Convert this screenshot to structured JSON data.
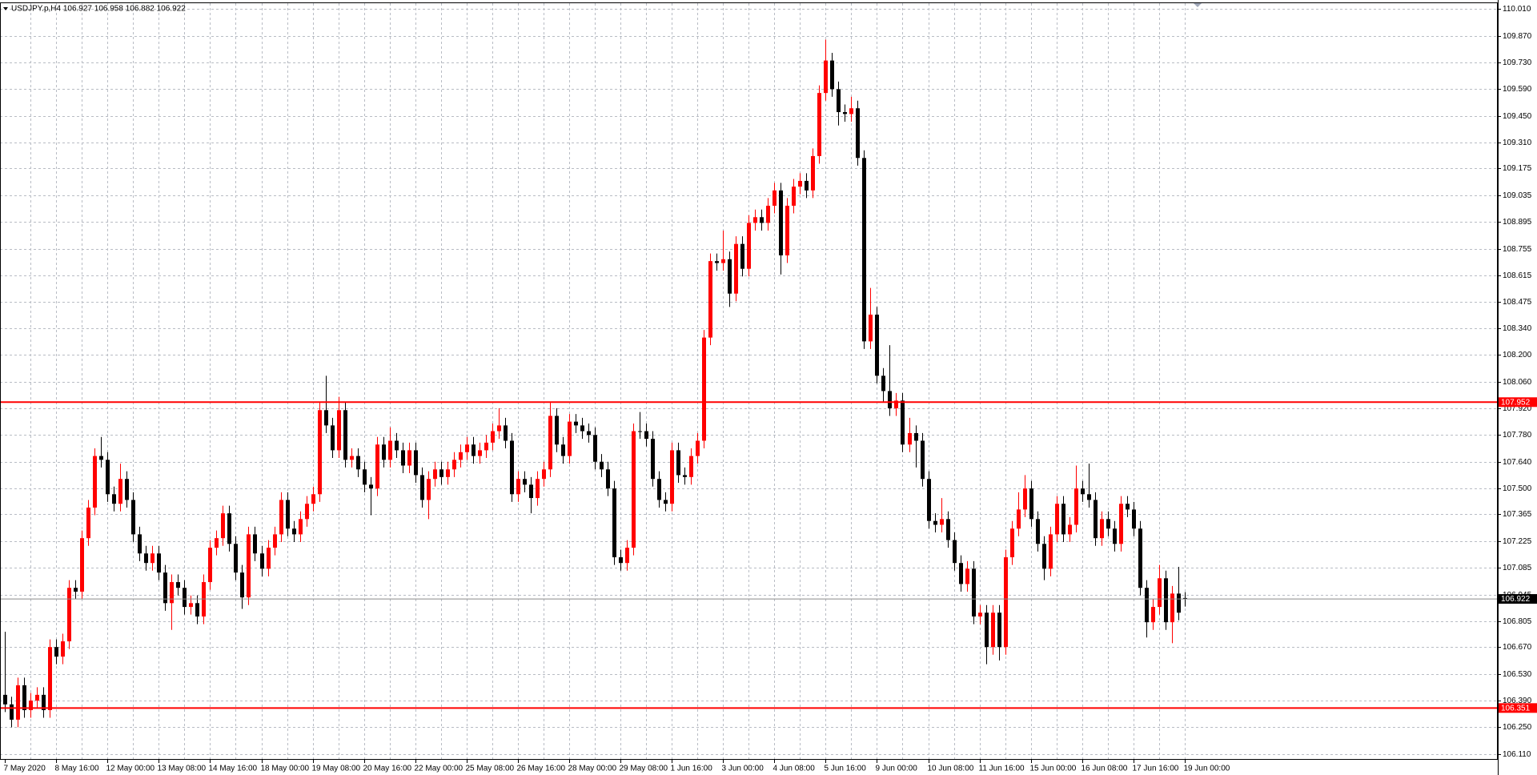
{
  "chart_data": {
    "type": "candlestick",
    "title": "USDJPY.p,H4  106.927 106.958 106.882 106.922",
    "up_color": "#ff0000",
    "down_color": "#000000",
    "grid": true,
    "ylim": [
      106.08,
      110.04
    ],
    "yticks": [
      {
        "value": 110.01,
        "label": "110.010"
      },
      {
        "value": 109.87,
        "label": "109.870"
      },
      {
        "value": 109.73,
        "label": "109.730"
      },
      {
        "value": 109.59,
        "label": "109.590"
      },
      {
        "value": 109.45,
        "label": "109.450"
      },
      {
        "value": 109.31,
        "label": "109.310"
      },
      {
        "value": 109.175,
        "label": "109.175"
      },
      {
        "value": 109.035,
        "label": "109.035"
      },
      {
        "value": 108.895,
        "label": "108.895"
      },
      {
        "value": 108.755,
        "label": "108.755"
      },
      {
        "value": 108.615,
        "label": "108.615"
      },
      {
        "value": 108.475,
        "label": "108.475"
      },
      {
        "value": 108.34,
        "label": "108.340"
      },
      {
        "value": 108.2,
        "label": "108.200"
      },
      {
        "value": 108.06,
        "label": "108.060"
      },
      {
        "value": 107.92,
        "label": "107.920"
      },
      {
        "value": 107.78,
        "label": "107.780"
      },
      {
        "value": 107.64,
        "label": "107.640"
      },
      {
        "value": 107.5,
        "label": "107.500"
      },
      {
        "value": 107.365,
        "label": "107.365"
      },
      {
        "value": 107.225,
        "label": "107.225"
      },
      {
        "value": 107.085,
        "label": "107.085"
      },
      {
        "value": 106.945,
        "label": "106.945"
      },
      {
        "value": 106.805,
        "label": "106.805"
      },
      {
        "value": 106.67,
        "label": "106.670"
      },
      {
        "value": 106.53,
        "label": "106.530"
      },
      {
        "value": 106.39,
        "label": "106.390"
      },
      {
        "value": 106.25,
        "label": "106.250"
      },
      {
        "value": 106.11,
        "label": "106.110"
      }
    ],
    "hlines": [
      {
        "value": 107.952,
        "color": "#ff0000"
      },
      {
        "value": 106.351,
        "color": "#ff0000"
      },
      {
        "value": 106.922,
        "color": "#000000"
      }
    ],
    "categories": [
      "7 May 2020",
      null,
      null,
      null,
      null,
      null,
      null,
      null,
      "8 May 16:00",
      null,
      null,
      null,
      null,
      null,
      null,
      null,
      "12 May 00:00",
      null,
      null,
      null,
      null,
      null,
      null,
      null,
      "13 May 08:00",
      null,
      null,
      null,
      null,
      null,
      null,
      null,
      "14 May 16:00",
      null,
      null,
      null,
      null,
      null,
      null,
      null,
      "18 May 00:00",
      null,
      null,
      null,
      null,
      null,
      null,
      null,
      "19 May 08:00",
      null,
      null,
      null,
      null,
      null,
      null,
      null,
      "20 May 16:00",
      null,
      null,
      null,
      null,
      null,
      null,
      null,
      "22 May 00:00",
      null,
      null,
      null,
      null,
      null,
      null,
      null,
      "25 May 08:00",
      null,
      null,
      null,
      null,
      null,
      null,
      null,
      "26 May 16:00",
      null,
      null,
      null,
      null,
      null,
      null,
      null,
      "28 May 00:00",
      null,
      null,
      null,
      null,
      null,
      null,
      null,
      "29 May 08:00",
      null,
      null,
      null,
      null,
      null,
      null,
      null,
      "1 Jun 16:00",
      null,
      null,
      null,
      null,
      null,
      null,
      null,
      "3 Jun 00:00",
      null,
      null,
      null,
      null,
      null,
      null,
      null,
      "4 Jun 08:00",
      null,
      null,
      null,
      null,
      null,
      null,
      null,
      "5 Jun 16:00",
      null,
      null,
      null,
      null,
      null,
      null,
      null,
      "9 Jun 00:00",
      null,
      null,
      null,
      null,
      null,
      null,
      null,
      "10 Jun 08:00",
      null,
      null,
      null,
      null,
      null,
      null,
      null,
      "11 Jun 16:00",
      null,
      null,
      null,
      null,
      null,
      null,
      null,
      "15 Jun 00:00",
      null,
      null,
      null,
      null,
      null,
      null,
      null,
      "16 Jun 08:00",
      null,
      null,
      null,
      null,
      null,
      null,
      null,
      "17 Jun 16:00",
      null,
      null,
      null,
      null,
      null,
      null,
      null,
      "19 Jun 00:00"
    ],
    "ohlc": [
      [
        106.42,
        106.75,
        106.33,
        106.37
      ],
      [
        106.37,
        106.41,
        106.25,
        106.29
      ],
      [
        106.29,
        106.51,
        106.25,
        106.47
      ],
      [
        106.47,
        106.51,
        106.3,
        106.34
      ],
      [
        106.34,
        106.43,
        106.3,
        106.39
      ],
      [
        106.39,
        106.46,
        106.35,
        106.42
      ],
      [
        106.42,
        106.46,
        106.3,
        106.34
      ],
      [
        106.34,
        106.71,
        106.3,
        106.67
      ],
      [
        106.67,
        106.71,
        106.58,
        106.62
      ],
      [
        106.62,
        106.74,
        106.58,
        106.7
      ],
      [
        106.7,
        107.02,
        106.66,
        106.98
      ],
      [
        106.98,
        107.02,
        106.92,
        106.96
      ],
      [
        106.96,
        107.28,
        106.92,
        107.24
      ],
      [
        107.24,
        107.44,
        107.2,
        107.4
      ],
      [
        107.4,
        107.71,
        107.36,
        107.67
      ],
      [
        107.67,
        107.77,
        107.61,
        107.65
      ],
      [
        107.65,
        107.69,
        107.43,
        107.47
      ],
      [
        107.47,
        107.51,
        107.38,
        107.42
      ],
      [
        107.42,
        107.63,
        107.38,
        107.55
      ],
      [
        107.55,
        107.59,
        107.4,
        107.44
      ],
      [
        107.44,
        107.48,
        107.22,
        107.26
      ],
      [
        107.26,
        107.3,
        107.12,
        107.16
      ],
      [
        107.16,
        107.2,
        107.07,
        107.11
      ],
      [
        107.11,
        107.2,
        107.07,
        107.16
      ],
      [
        107.16,
        107.2,
        107.02,
        107.06
      ],
      [
        107.06,
        107.1,
        106.86,
        106.9
      ],
      [
        106.9,
        107.05,
        106.76,
        107.01
      ],
      [
        107.01,
        107.05,
        106.94,
        106.98
      ],
      [
        106.98,
        107.02,
        106.84,
        106.88
      ],
      [
        106.88,
        106.94,
        106.84,
        106.9
      ],
      [
        106.9,
        106.94,
        106.79,
        106.83
      ],
      [
        106.83,
        107.05,
        106.79,
        107.01
      ],
      [
        107.01,
        107.23,
        106.97,
        107.19
      ],
      [
        107.19,
        107.28,
        107.15,
        107.24
      ],
      [
        107.24,
        107.41,
        107.2,
        107.37
      ],
      [
        107.37,
        107.41,
        107.17,
        107.21
      ],
      [
        107.21,
        107.25,
        107.02,
        107.06
      ],
      [
        107.06,
        107.1,
        106.87,
        106.93
      ],
      [
        106.93,
        107.3,
        106.89,
        107.26
      ],
      [
        107.26,
        107.3,
        107.12,
        107.16
      ],
      [
        107.16,
        107.2,
        107.04,
        107.08
      ],
      [
        107.08,
        107.23,
        107.04,
        107.19
      ],
      [
        107.19,
        107.3,
        107.15,
        107.26
      ],
      [
        107.26,
        107.48,
        107.22,
        107.44
      ],
      [
        107.44,
        107.48,
        107.25,
        107.29
      ],
      [
        107.29,
        107.33,
        107.22,
        107.26
      ],
      [
        107.26,
        107.38,
        107.22,
        107.34
      ],
      [
        107.34,
        107.46,
        107.3,
        107.42
      ],
      [
        107.42,
        107.51,
        107.38,
        107.47
      ],
      [
        107.47,
        107.95,
        107.43,
        107.91
      ],
      [
        107.91,
        108.09,
        107.79,
        107.83
      ],
      [
        107.83,
        107.87,
        107.66,
        107.7
      ],
      [
        107.7,
        107.98,
        107.66,
        107.91
      ],
      [
        107.91,
        107.95,
        107.61,
        107.65
      ],
      [
        107.65,
        107.71,
        107.61,
        107.67
      ],
      [
        107.67,
        107.71,
        107.56,
        107.6
      ],
      [
        107.6,
        107.64,
        107.48,
        107.52
      ],
      [
        107.52,
        107.56,
        107.36,
        107.5
      ],
      [
        107.5,
        107.77,
        107.46,
        107.73
      ],
      [
        107.73,
        107.77,
        107.61,
        107.65
      ],
      [
        107.65,
        107.82,
        107.61,
        107.75
      ],
      [
        107.75,
        107.79,
        107.66,
        107.7
      ],
      [
        107.7,
        107.74,
        107.58,
        107.62
      ],
      [
        107.62,
        107.74,
        107.58,
        107.7
      ],
      [
        107.7,
        107.74,
        107.53,
        107.57
      ],
      [
        107.57,
        107.61,
        107.4,
        107.44
      ],
      [
        107.44,
        107.59,
        107.34,
        107.55
      ],
      [
        107.55,
        107.64,
        107.51,
        107.6
      ],
      [
        107.6,
        107.64,
        107.52,
        107.56
      ],
      [
        107.56,
        107.64,
        107.52,
        107.6
      ],
      [
        107.6,
        107.69,
        107.56,
        107.65
      ],
      [
        107.65,
        107.73,
        107.61,
        107.69
      ],
      [
        107.69,
        107.77,
        107.65,
        107.73
      ],
      [
        107.73,
        107.77,
        107.63,
        107.67
      ],
      [
        107.67,
        107.74,
        107.63,
        107.7
      ],
      [
        107.7,
        107.78,
        107.66,
        107.74
      ],
      [
        107.74,
        107.84,
        107.7,
        107.8
      ],
      [
        107.8,
        107.92,
        107.76,
        107.83
      ],
      [
        107.83,
        107.87,
        107.71,
        107.75
      ],
      [
        107.75,
        107.79,
        107.43,
        107.47
      ],
      [
        107.47,
        107.59,
        107.43,
        107.55
      ],
      [
        107.55,
        107.59,
        107.48,
        107.52
      ],
      [
        107.52,
        107.56,
        107.37,
        107.45
      ],
      [
        107.45,
        107.59,
        107.41,
        107.55
      ],
      [
        107.55,
        107.64,
        107.51,
        107.6
      ],
      [
        107.6,
        107.95,
        107.56,
        107.88
      ],
      [
        107.88,
        107.92,
        107.69,
        107.73
      ],
      [
        107.73,
        107.77,
        107.63,
        107.67
      ],
      [
        107.67,
        107.89,
        107.63,
        107.85
      ],
      [
        107.85,
        107.89,
        107.79,
        107.83
      ],
      [
        107.83,
        107.87,
        107.76,
        107.8
      ],
      [
        107.8,
        107.84,
        107.74,
        107.78
      ],
      [
        107.78,
        107.82,
        107.6,
        107.64
      ],
      [
        107.64,
        107.68,
        107.56,
        107.6
      ],
      [
        107.6,
        107.64,
        107.46,
        107.5
      ],
      [
        107.5,
        107.54,
        107.1,
        107.14
      ],
      [
        107.14,
        107.18,
        107.07,
        107.11
      ],
      [
        107.11,
        107.23,
        107.07,
        107.19
      ],
      [
        107.19,
        107.84,
        107.15,
        107.8
      ],
      [
        107.8,
        107.9,
        107.76,
        107.8
      ],
      [
        107.8,
        107.84,
        107.72,
        107.76
      ],
      [
        107.76,
        107.8,
        107.51,
        107.55
      ],
      [
        107.55,
        107.59,
        107.4,
        107.44
      ],
      [
        107.44,
        107.48,
        107.38,
        107.42
      ],
      [
        107.42,
        107.74,
        107.38,
        107.7
      ],
      [
        107.7,
        107.74,
        107.53,
        107.57
      ],
      [
        107.57,
        107.61,
        107.52,
        107.56
      ],
      [
        107.56,
        107.71,
        107.52,
        107.67
      ],
      [
        107.67,
        107.79,
        107.63,
        107.75
      ],
      [
        107.75,
        108.33,
        107.71,
        108.29
      ],
      [
        108.29,
        108.73,
        108.25,
        108.69
      ],
      [
        108.69,
        108.73,
        108.64,
        108.68
      ],
      [
        108.68,
        108.85,
        108.64,
        108.7
      ],
      [
        108.7,
        108.74,
        108.45,
        108.52
      ],
      [
        108.52,
        108.82,
        108.48,
        108.78
      ],
      [
        108.78,
        108.82,
        108.61,
        108.65
      ],
      [
        108.65,
        108.93,
        108.61,
        108.89
      ],
      [
        108.89,
        108.96,
        108.85,
        108.92
      ],
      [
        108.92,
        108.96,
        108.85,
        108.89
      ],
      [
        108.89,
        109.02,
        108.85,
        108.98
      ],
      [
        108.98,
        109.1,
        108.94,
        109.06
      ],
      [
        109.06,
        109.1,
        108.62,
        108.72
      ],
      [
        108.72,
        109.02,
        108.68,
        108.98
      ],
      [
        108.98,
        109.12,
        108.94,
        109.08
      ],
      [
        109.08,
        109.15,
        109.04,
        109.11
      ],
      [
        109.11,
        109.15,
        109.02,
        109.06
      ],
      [
        109.06,
        109.28,
        109.02,
        109.24
      ],
      [
        109.24,
        109.61,
        109.2,
        109.57
      ],
      [
        109.57,
        109.85,
        109.53,
        109.74
      ],
      [
        109.74,
        109.78,
        109.55,
        109.59
      ],
      [
        109.59,
        109.63,
        109.4,
        109.47
      ],
      [
        109.47,
        109.51,
        109.42,
        109.46
      ],
      [
        109.46,
        109.55,
        109.42,
        109.49
      ],
      [
        109.49,
        109.53,
        109.19,
        109.23
      ],
      [
        109.23,
        109.27,
        108.23,
        108.27
      ],
      [
        108.27,
        108.55,
        108.23,
        108.41
      ],
      [
        108.41,
        108.45,
        108.05,
        108.09
      ],
      [
        108.09,
        108.13,
        107.95,
        108.01
      ],
      [
        108.01,
        108.25,
        107.88,
        107.92
      ],
      [
        107.92,
        108.0,
        107.88,
        107.96
      ],
      [
        107.96,
        108.0,
        107.69,
        107.73
      ],
      [
        107.73,
        107.87,
        107.69,
        107.79
      ],
      [
        107.79,
        107.83,
        107.61,
        107.75
      ],
      [
        107.75,
        107.79,
        107.51,
        107.55
      ],
      [
        107.55,
        107.59,
        107.29,
        107.33
      ],
      [
        107.33,
        107.37,
        107.27,
        107.31
      ],
      [
        107.31,
        107.45,
        107.27,
        107.34
      ],
      [
        107.34,
        107.38,
        107.19,
        107.23
      ],
      [
        107.23,
        107.27,
        107.07,
        107.11
      ],
      [
        107.11,
        107.15,
        106.96,
        107.0
      ],
      [
        107.0,
        107.12,
        106.96,
        107.08
      ],
      [
        107.08,
        107.12,
        106.79,
        106.83
      ],
      [
        106.83,
        106.89,
        106.79,
        106.85
      ],
      [
        106.85,
        106.89,
        106.58,
        106.67
      ],
      [
        106.67,
        106.89,
        106.63,
        106.85
      ],
      [
        106.85,
        106.89,
        106.6,
        106.67
      ],
      [
        106.67,
        107.18,
        106.63,
        107.14
      ],
      [
        107.14,
        107.33,
        107.1,
        107.29
      ],
      [
        107.29,
        107.48,
        107.25,
        107.39
      ],
      [
        107.39,
        107.57,
        107.35,
        107.5
      ],
      [
        107.5,
        107.54,
        107.3,
        107.34
      ],
      [
        107.34,
        107.38,
        107.17,
        107.21
      ],
      [
        107.21,
        107.25,
        107.02,
        107.08
      ],
      [
        107.08,
        107.3,
        107.04,
        107.26
      ],
      [
        107.26,
        107.46,
        107.22,
        107.42
      ],
      [
        107.42,
        107.46,
        107.22,
        107.26
      ],
      [
        107.26,
        107.35,
        107.22,
        107.31
      ],
      [
        107.31,
        107.62,
        107.27,
        107.5
      ],
      [
        107.5,
        107.54,
        107.43,
        107.47
      ],
      [
        107.47,
        107.63,
        107.4,
        107.44
      ],
      [
        107.44,
        107.48,
        107.2,
        107.24
      ],
      [
        107.24,
        107.38,
        107.2,
        107.34
      ],
      [
        107.34,
        107.38,
        107.25,
        107.29
      ],
      [
        107.29,
        107.33,
        107.17,
        107.21
      ],
      [
        107.21,
        107.46,
        107.17,
        107.42
      ],
      [
        107.42,
        107.46,
        107.35,
        107.39
      ],
      [
        107.39,
        107.43,
        107.25,
        107.29
      ],
      [
        107.29,
        107.33,
        106.94,
        106.98
      ],
      [
        106.98,
        107.02,
        106.72,
        106.8
      ],
      [
        106.8,
        106.92,
        106.76,
        106.88
      ],
      [
        106.88,
        107.1,
        106.84,
        107.03
      ],
      [
        107.03,
        107.07,
        106.76,
        106.8
      ],
      [
        106.8,
        106.99,
        106.69,
        106.95
      ],
      [
        106.95,
        107.09,
        106.81,
        106.85
      ],
      [
        106.927,
        106.958,
        106.882,
        106.922
      ]
    ]
  }
}
